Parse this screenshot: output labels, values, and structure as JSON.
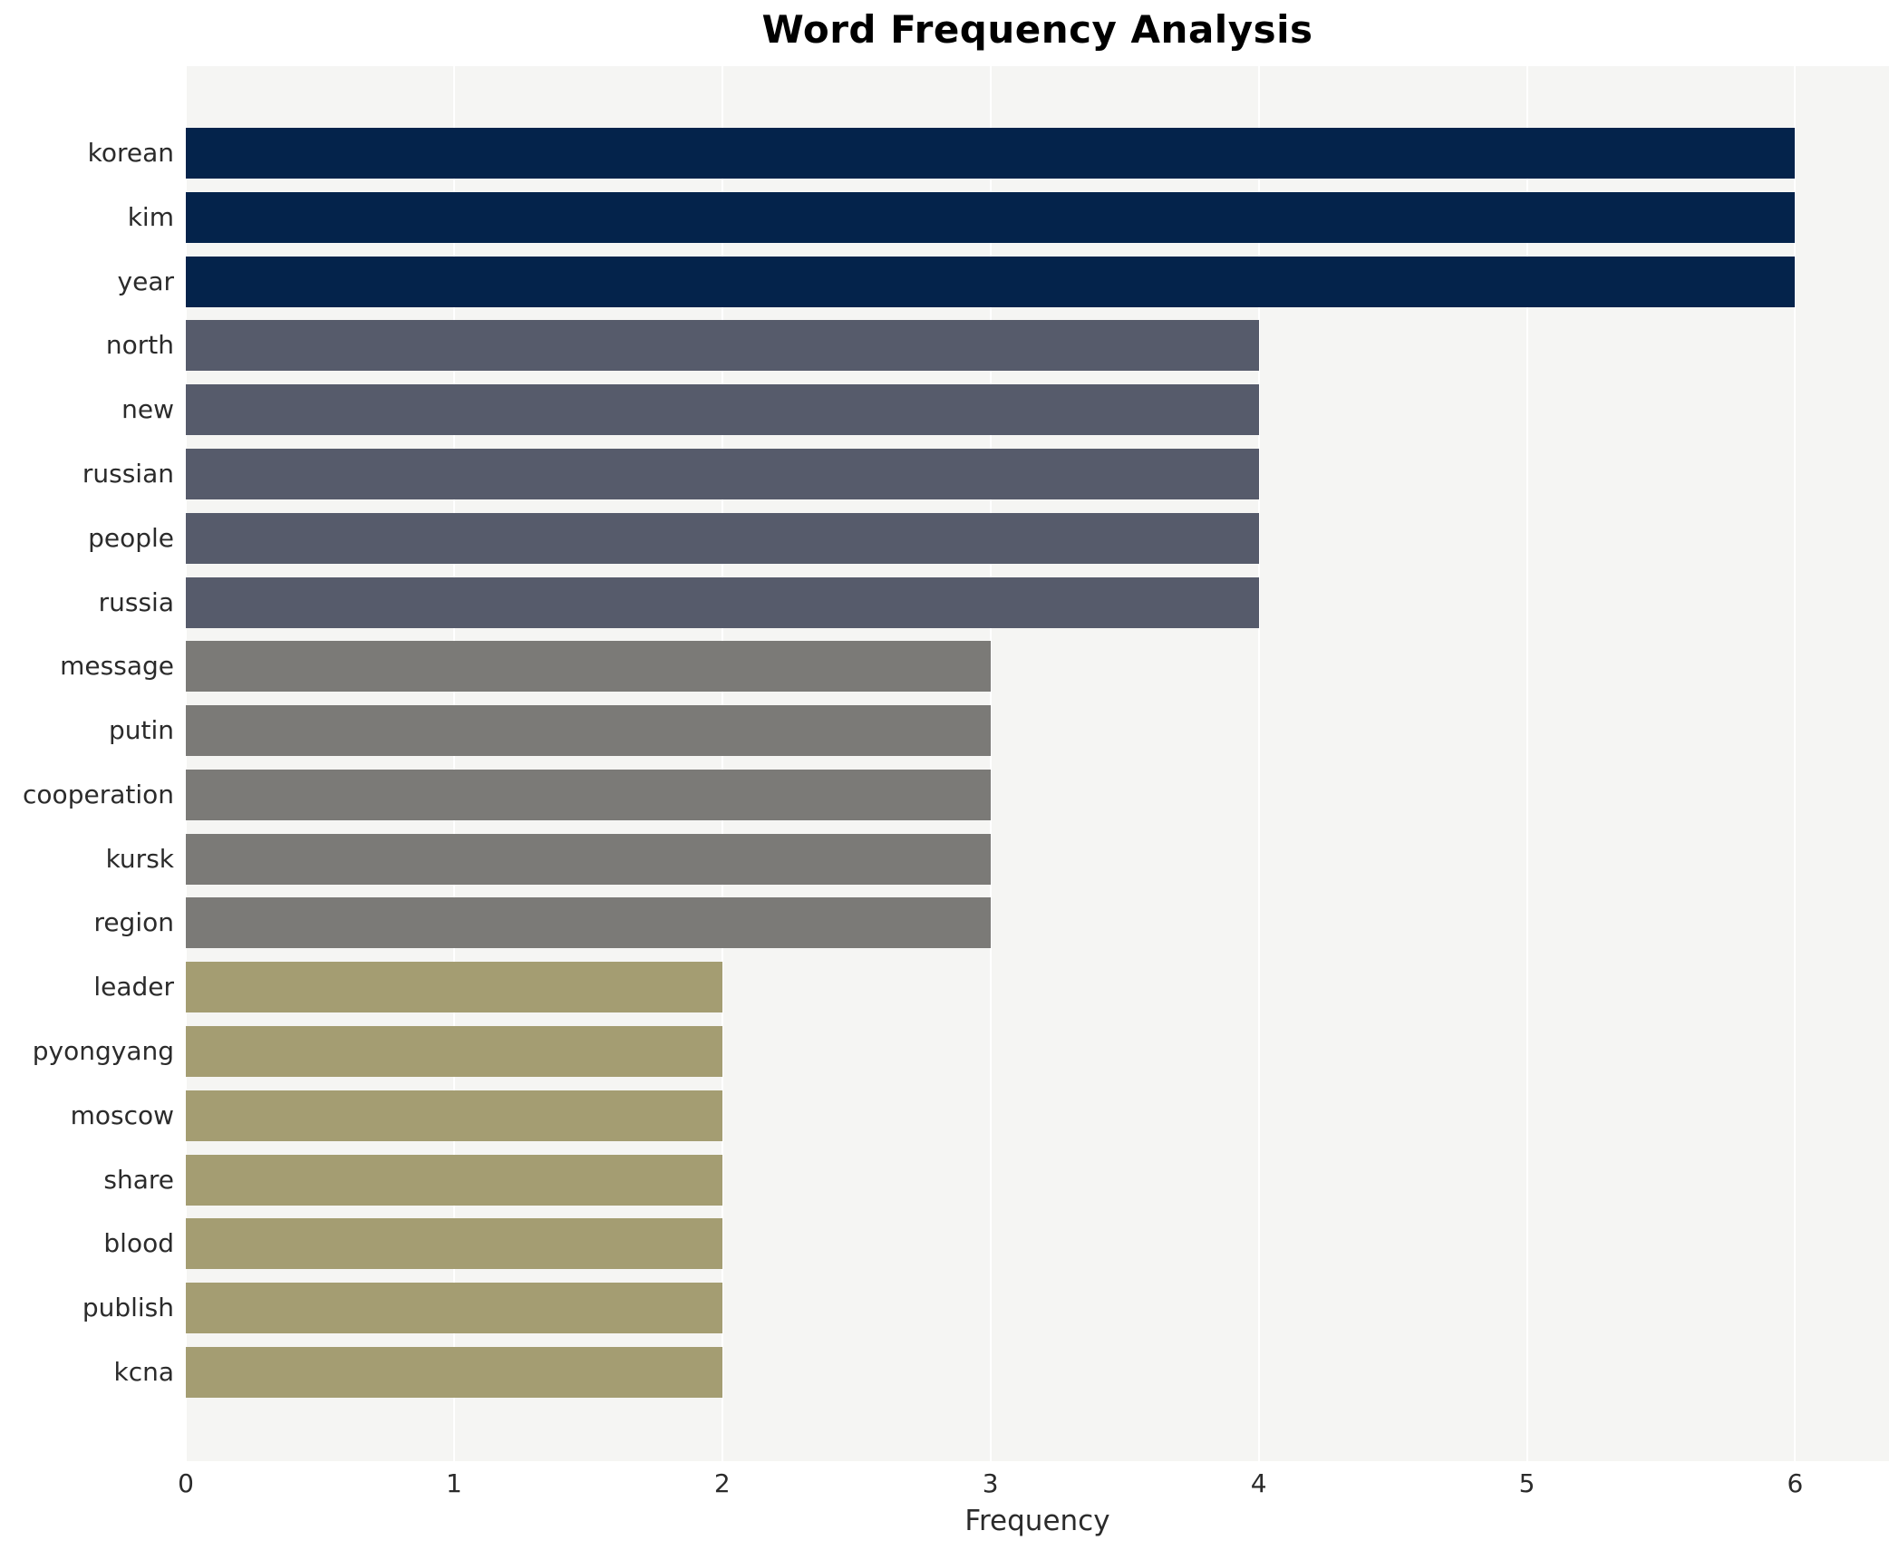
{
  "chart_data": {
    "type": "bar",
    "orientation": "horizontal",
    "title": "Word Frequency Analysis",
    "xlabel": "Frequency",
    "ylabel": "",
    "categories": [
      "korean",
      "kim",
      "year",
      "north",
      "new",
      "russian",
      "people",
      "russia",
      "message",
      "putin",
      "cooperation",
      "kursk",
      "region",
      "leader",
      "pyongyang",
      "moscow",
      "share",
      "blood",
      "publish",
      "kcna"
    ],
    "values": [
      6,
      6,
      6,
      4,
      4,
      4,
      4,
      4,
      3,
      3,
      3,
      3,
      3,
      2,
      2,
      2,
      2,
      2,
      2,
      2
    ],
    "bar_colors": [
      "#04234b",
      "#04234b",
      "#04234b",
      "#565b6b",
      "#565b6b",
      "#565b6b",
      "#565b6b",
      "#565b6b",
      "#7b7a77",
      "#7b7a77",
      "#7b7a77",
      "#7b7a77",
      "#7b7a77",
      "#a49d72",
      "#a49d72",
      "#a49d72",
      "#a49d72",
      "#a49d72",
      "#a49d72",
      "#a49d72"
    ],
    "x_ticks": [
      "0",
      "1",
      "2",
      "3",
      "4",
      "5",
      "6"
    ],
    "xlim": [
      0,
      6.35
    ],
    "grid": true,
    "legend": "none",
    "plot_background": "#f5f5f3",
    "grid_color": "#ffffff",
    "outer_background": "#ffffff"
  }
}
